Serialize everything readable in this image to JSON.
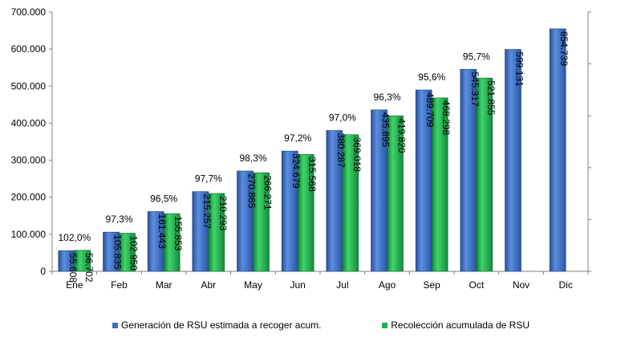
{
  "chart_data": {
    "type": "bar",
    "categories": [
      "Ene",
      "Feb",
      "Mar",
      "Abr",
      "May",
      "Jun",
      "Jul",
      "Ago",
      "Sep",
      "Oct",
      "Nov",
      "Dic"
    ],
    "series": [
      {
        "name": "Generación de RSU estimada a recoger acum.",
        "values": [
          55608,
          105835,
          161443,
          215257,
          270865,
          324679,
          380287,
          435895,
          489709,
          545317,
          599131,
          654739
        ],
        "labels": [
          "55.608",
          "105.835",
          "161.443",
          "215.257",
          "270.865",
          "324.679",
          "380.287",
          "435.895",
          "489.709",
          "545.317",
          "599.131",
          "654.739"
        ],
        "color": "#3f6fc4"
      },
      {
        "name": "Recolección acumulada de RSU",
        "values": [
          56702,
          102950,
          155853,
          210293,
          266271,
          315568,
          369018,
          419820,
          468298,
          521855,
          null,
          null
        ],
        "labels": [
          "56.702",
          "102.950",
          "155.853",
          "210.293",
          "266.271",
          "315.568",
          "369.018",
          "419.820",
          "468.298",
          "521.855",
          null,
          null
        ],
        "color": "#22b14c"
      }
    ],
    "percent_labels": [
      "102,0%",
      "97,3%",
      "96,5%",
      "97,7%",
      "98,3%",
      "97,2%",
      "97,0%",
      "96,3%",
      "95,6%",
      "95,7%",
      null,
      null
    ],
    "y_ticks": [
      "0",
      "100.000",
      "200.000",
      "300.000",
      "400.000",
      "500.000",
      "600.000",
      "700.000"
    ],
    "ylim": [
      0,
      700000
    ],
    "grid": false,
    "legend_position": "bottom"
  }
}
